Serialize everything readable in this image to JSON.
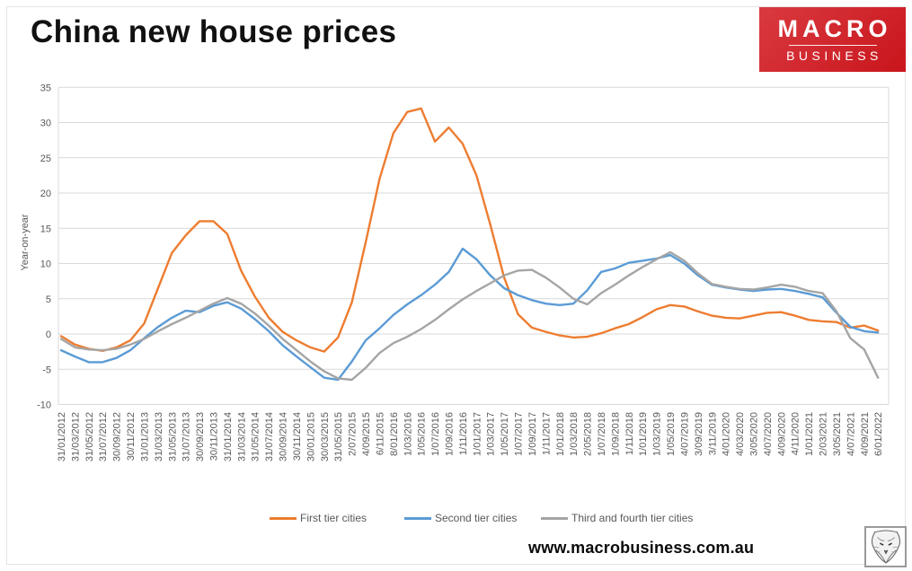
{
  "page_title": "China new house prices",
  "logo": {
    "line1": "MACRO",
    "line2": "BUSINESS",
    "bg_color": "#C9151C",
    "text_color": "#FFFFFF"
  },
  "footer": {
    "website": "www.macrobusiness.com.au",
    "stamp_icon": "wolf-sketch"
  },
  "theme": {
    "background": "#FFFFFF",
    "grid_color": "#D9D9D9",
    "tick_color": "#595959",
    "title_color": "#111111"
  },
  "chart_data": {
    "type": "line",
    "title": "China new house prices",
    "xlabel": "",
    "ylabel": "Year-on-year",
    "ylim": [
      -10,
      35
    ],
    "ytick_step": 5,
    "grid": "horizontal",
    "legend_position": "bottom-center",
    "categories": [
      "31/01/2012",
      "31/03/2012",
      "31/05/2012",
      "31/07/2012",
      "30/09/2012",
      "30/11/2012",
      "31/01/2013",
      "31/03/2013",
      "31/05/2013",
      "31/07/2013",
      "30/09/2013",
      "30/11/2013",
      "31/01/2014",
      "31/03/2014",
      "31/05/2014",
      "31/07/2014",
      "30/09/2014",
      "30/11/2014",
      "30/01/2015",
      "30/03/2015",
      "31/05/2015",
      "2/07/2015",
      "4/09/2015",
      "6/11/2015",
      "8/01/2016",
      "1/03/2016",
      "1/05/2016",
      "1/07/2016",
      "1/09/2016",
      "1/11/2016",
      "1/01/2017",
      "1/03/2017",
      "1/05/2017",
      "1/07/2017",
      "1/09/2017",
      "1/11/2017",
      "1/01/2018",
      "1/03/2018",
      "2/05/2018",
      "1/07/2018",
      "1/09/2018",
      "1/11/2018",
      "1/01/2019",
      "1/03/2019",
      "1/05/2019",
      "4/07/2019",
      "3/09/2019",
      "3/11/2019",
      "4/01/2020",
      "4/03/2020",
      "3/05/2020",
      "4/07/2020",
      "4/09/2020",
      "4/11/2020",
      "1/01/2021",
      "2/03/2021",
      "3/05/2021",
      "4/07/2021",
      "4/09/2021",
      "6/01/2022"
    ],
    "series": [
      {
        "name": "First tier cities",
        "color": "#ED7D31",
        "values": [
          -0.3,
          -1.5,
          -2.1,
          -2.4,
          -1.9,
          -0.9,
          1.5,
          6.5,
          11.5,
          14.0,
          16.0,
          16.0,
          14.2,
          9.0,
          5.3,
          2.3,
          0.3,
          -0.9,
          -1.9,
          -2.5,
          -0.5,
          4.5,
          13.0,
          22.0,
          28.5,
          31.5,
          32.0,
          27.3,
          29.3,
          27.0,
          22.5,
          15.5,
          8.0,
          2.8,
          0.9,
          0.3,
          -0.2,
          -0.5,
          -0.4,
          0.1,
          0.8,
          1.4,
          2.4,
          3.5,
          4.1,
          3.9,
          3.2,
          2.6,
          2.3,
          2.2,
          2.6,
          3.0,
          3.1,
          2.6,
          2.0,
          1.8,
          1.7,
          0.9,
          1.2,
          0.5
        ]
      },
      {
        "name": "Second tier cities",
        "color": "#5B9BD5",
        "values": [
          -2.3,
          -3.2,
          -4.0,
          -4.0,
          -3.4,
          -2.3,
          -0.6,
          1.0,
          2.3,
          3.3,
          3.1,
          4.0,
          4.5,
          3.6,
          2.1,
          0.4,
          -1.6,
          -3.2,
          -4.7,
          -6.2,
          -6.5,
          -3.9,
          -0.9,
          0.8,
          2.7,
          4.2,
          5.5,
          7.0,
          8.8,
          12.1,
          10.6,
          8.3,
          6.5,
          5.5,
          4.8,
          4.3,
          4.1,
          4.3,
          6.2,
          8.8,
          9.3,
          10.1,
          10.4,
          10.7,
          11.2,
          10.0,
          8.3,
          7.0,
          6.6,
          6.3,
          6.1,
          6.3,
          6.4,
          6.1,
          5.7,
          5.2,
          3.0,
          1.0,
          0.4,
          0.2
        ]
      },
      {
        "name": "Third and fourth tier cities",
        "color": "#A5A5A5",
        "values": [
          -0.7,
          -1.9,
          -2.2,
          -2.3,
          -2.1,
          -1.5,
          -0.7,
          0.4,
          1.4,
          2.3,
          3.3,
          4.3,
          5.1,
          4.3,
          2.9,
          1.2,
          -0.7,
          -2.3,
          -3.9,
          -5.3,
          -6.3,
          -6.5,
          -4.8,
          -2.7,
          -1.3,
          -0.4,
          0.7,
          2.0,
          3.5,
          4.9,
          6.1,
          7.2,
          8.3,
          9.0,
          9.1,
          8.0,
          6.6,
          5.0,
          4.2,
          5.8,
          7.0,
          8.3,
          9.5,
          10.6,
          11.6,
          10.4,
          8.6,
          7.1,
          6.7,
          6.4,
          6.3,
          6.6,
          7.0,
          6.7,
          6.1,
          5.8,
          3.2,
          -0.6,
          -2.2,
          -6.2
        ]
      }
    ]
  }
}
